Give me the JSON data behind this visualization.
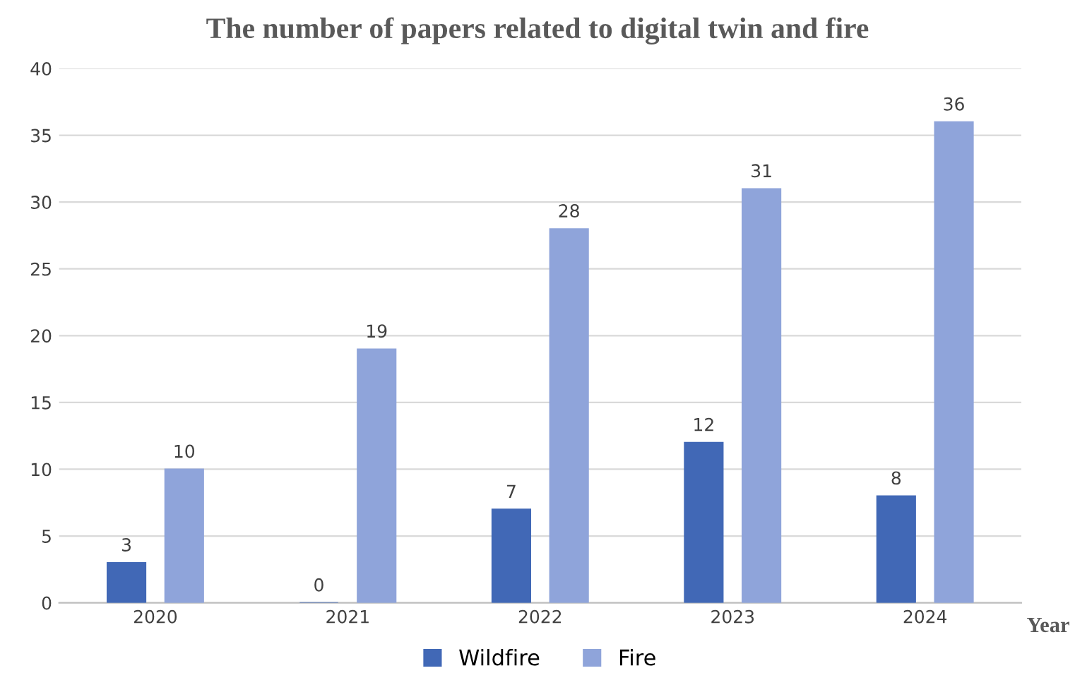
{
  "chart_data": {
    "type": "bar",
    "title": "The number of papers related to digital twin and fire",
    "xlabel": "Year",
    "categories": [
      "2020",
      "2021",
      "2022",
      "2023",
      "2024"
    ],
    "series": [
      {
        "name": "Wildfire",
        "color": "#4168b6",
        "values": [
          3,
          0,
          7,
          12,
          8
        ]
      },
      {
        "name": "Fire",
        "color": "#8fa4da",
        "values": [
          10,
          19,
          28,
          31,
          36
        ]
      }
    ],
    "ylim": [
      0,
      40
    ],
    "yticks": [
      0,
      5,
      10,
      15,
      20,
      25,
      30,
      35,
      40
    ],
    "grid": "y",
    "legend": "bottom",
    "data_labels": true
  }
}
